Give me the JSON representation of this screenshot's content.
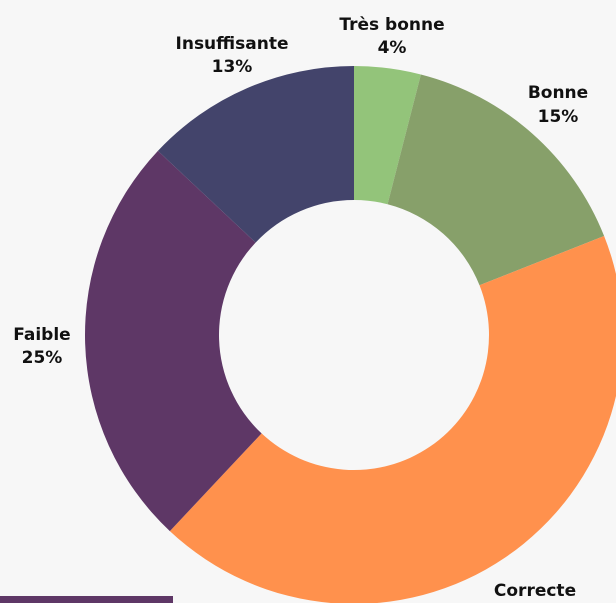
{
  "chart_data": {
    "type": "donut",
    "categories": [
      "Très bonne",
      "Bonne",
      "Correcte",
      "Faible",
      "Insuffisante"
    ],
    "values": [
      4,
      15,
      43,
      25,
      13
    ],
    "value_labels": [
      "4%",
      "15%",
      null,
      "25%",
      "13%"
    ],
    "colors": [
      "#93c47a",
      "#87a06a",
      "#ff914d",
      "#5e3766",
      "#43446b"
    ]
  }
}
